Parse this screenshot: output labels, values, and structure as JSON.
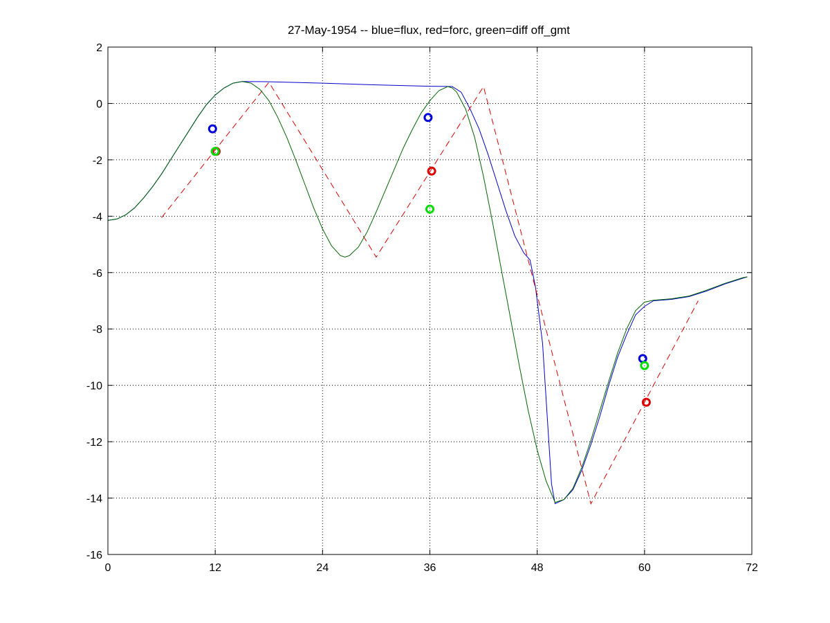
{
  "chart_data": {
    "type": "line",
    "title": "27-May-1954 -- blue=flux, red=forc, green=diff off_gmt",
    "xlabel": "",
    "ylabel": "",
    "xlim": [
      0,
      72
    ],
    "ylim": [
      -16,
      2
    ],
    "x_ticks": [
      0,
      12,
      24,
      36,
      48,
      60,
      72
    ],
    "y_ticks": [
      2,
      0,
      -2,
      -4,
      -6,
      -8,
      -10,
      -12,
      -14,
      -16
    ],
    "grid": true,
    "legend": "none",
    "series": [
      {
        "color": "#0000cc",
        "style": "solid",
        "points": [
          [
            0,
            -4.15
          ],
          [
            1,
            -4.1
          ],
          [
            2,
            -3.95
          ],
          [
            3,
            -3.7
          ],
          [
            4,
            -3.35
          ],
          [
            5,
            -2.95
          ],
          [
            6,
            -2.5
          ],
          [
            7,
            -2.0
          ],
          [
            8,
            -1.5
          ],
          [
            9,
            -1.0
          ],
          [
            10,
            -0.5
          ],
          [
            11,
            -0.05
          ],
          [
            12,
            0.3
          ],
          [
            13,
            0.55
          ],
          [
            14,
            0.72
          ],
          [
            15,
            0.78
          ],
          [
            18,
            0.77
          ],
          [
            24,
            0.72
          ],
          [
            30,
            0.66
          ],
          [
            36,
            0.61
          ],
          [
            38.5,
            0.6
          ],
          [
            39.5,
            0.4
          ],
          [
            40.5,
            -0.2
          ],
          [
            41.5,
            -0.9
          ],
          [
            42.5,
            -1.8
          ],
          [
            43.5,
            -2.8
          ],
          [
            44.5,
            -3.8
          ],
          [
            45.5,
            -4.7
          ],
          [
            46.5,
            -5.3
          ],
          [
            47.2,
            -5.55
          ],
          [
            47.8,
            -6.5
          ],
          [
            48.6,
            -8.5
          ],
          [
            49.2,
            -11.5
          ],
          [
            49.6,
            -13.5
          ],
          [
            50,
            -14.2
          ],
          [
            51,
            -14.05
          ],
          [
            52,
            -13.7
          ],
          [
            53,
            -13.0
          ],
          [
            54,
            -12.1
          ],
          [
            55,
            -11.1
          ],
          [
            56,
            -10.0
          ],
          [
            57,
            -9.0
          ],
          [
            58,
            -8.2
          ],
          [
            59,
            -7.5
          ],
          [
            60,
            -7.2
          ],
          [
            61,
            -7.0
          ],
          [
            63,
            -6.95
          ],
          [
            65,
            -6.85
          ],
          [
            67,
            -6.65
          ],
          [
            69,
            -6.4
          ],
          [
            71,
            -6.2
          ],
          [
            71.5,
            -6.15
          ]
        ]
      },
      {
        "color": "#dd0000",
        "style": "dashed",
        "points": [
          [
            6,
            -4.05
          ],
          [
            18,
            0.75
          ],
          [
            30,
            -5.45
          ],
          [
            42,
            0.6
          ],
          [
            54,
            -14.2
          ],
          [
            66,
            -7.0
          ]
        ]
      },
      {
        "color": "#006400",
        "style": "solid",
        "points": [
          [
            0,
            -4.15
          ],
          [
            1,
            -4.1
          ],
          [
            2,
            -3.95
          ],
          [
            3,
            -3.7
          ],
          [
            4,
            -3.35
          ],
          [
            5,
            -2.95
          ],
          [
            6,
            -2.5
          ],
          [
            7,
            -2.0
          ],
          [
            8,
            -1.5
          ],
          [
            9,
            -1.0
          ],
          [
            10,
            -0.5
          ],
          [
            11,
            -0.05
          ],
          [
            12,
            0.3
          ],
          [
            13,
            0.55
          ],
          [
            14,
            0.72
          ],
          [
            15,
            0.78
          ],
          [
            16,
            0.72
          ],
          [
            17,
            0.5
          ],
          [
            18,
            0.1
          ],
          [
            19,
            -0.5
          ],
          [
            20,
            -1.2
          ],
          [
            21,
            -2.0
          ],
          [
            22,
            -2.85
          ],
          [
            23,
            -3.7
          ],
          [
            24,
            -4.45
          ],
          [
            25,
            -5.05
          ],
          [
            26,
            -5.4
          ],
          [
            26.5,
            -5.45
          ],
          [
            27,
            -5.4
          ],
          [
            28,
            -5.1
          ],
          [
            29,
            -4.55
          ],
          [
            30,
            -3.85
          ],
          [
            31,
            -3.1
          ],
          [
            32,
            -2.35
          ],
          [
            33,
            -1.6
          ],
          [
            34,
            -0.95
          ],
          [
            35,
            -0.35
          ],
          [
            36,
            0.1
          ],
          [
            37,
            0.45
          ],
          [
            38,
            0.6
          ],
          [
            38.5,
            0.55
          ],
          [
            39,
            0.4
          ],
          [
            40,
            -0.2
          ],
          [
            41,
            -1.2
          ],
          [
            42,
            -2.6
          ],
          [
            43,
            -4.2
          ],
          [
            44,
            -5.9
          ],
          [
            45,
            -7.6
          ],
          [
            46,
            -9.3
          ],
          [
            47,
            -10.9
          ],
          [
            48,
            -12.3
          ],
          [
            49,
            -13.4
          ],
          [
            50,
            -14.15
          ],
          [
            51,
            -14.05
          ],
          [
            52,
            -13.65
          ],
          [
            53,
            -12.9
          ],
          [
            54,
            -11.95
          ],
          [
            55,
            -10.9
          ],
          [
            56,
            -9.85
          ],
          [
            57,
            -8.85
          ],
          [
            58,
            -8.0
          ],
          [
            59,
            -7.35
          ],
          [
            60,
            -7.05
          ],
          [
            61,
            -6.98
          ],
          [
            63,
            -6.93
          ],
          [
            65,
            -6.83
          ],
          [
            67,
            -6.62
          ],
          [
            69,
            -6.38
          ],
          [
            71,
            -6.18
          ],
          [
            71.5,
            -6.15
          ]
        ]
      }
    ],
    "markers": [
      {
        "x": 11.7,
        "y": -0.9,
        "color": "#0000dd"
      },
      {
        "x": 12.1,
        "y": -1.7,
        "color": "#dd0000"
      },
      {
        "x": 12.0,
        "y": -1.7,
        "color": "#00dd00"
      },
      {
        "x": 35.8,
        "y": -0.5,
        "color": "#0000dd"
      },
      {
        "x": 36.2,
        "y": -2.4,
        "color": "#dd0000"
      },
      {
        "x": 36.0,
        "y": -3.75,
        "color": "#00dd00"
      },
      {
        "x": 59.8,
        "y": -9.05,
        "color": "#0000dd"
      },
      {
        "x": 60.2,
        "y": -10.6,
        "color": "#dd0000"
      },
      {
        "x": 60.0,
        "y": -9.3,
        "color": "#00dd00"
      }
    ]
  }
}
